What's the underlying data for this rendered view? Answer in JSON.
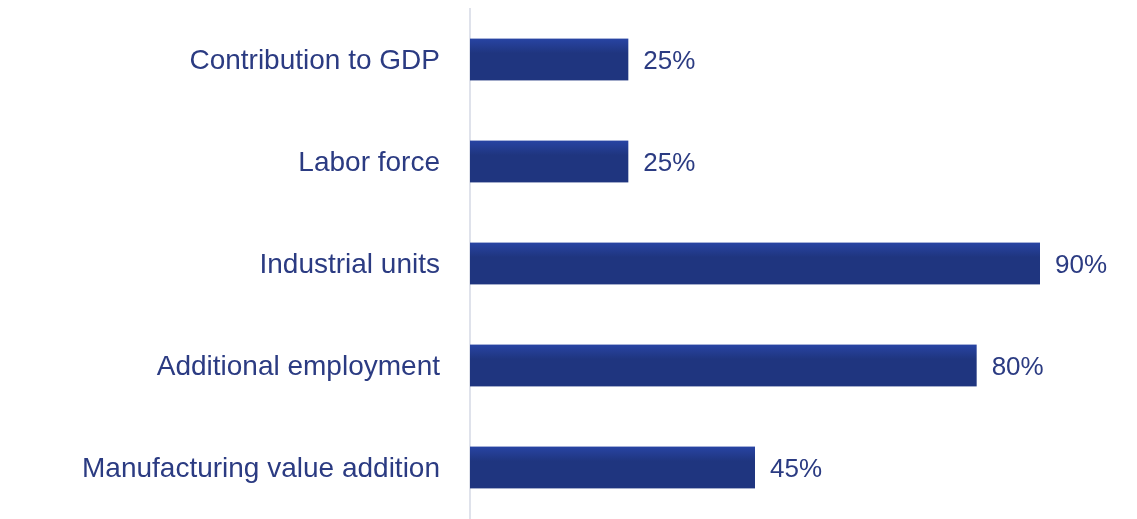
{
  "chart_data": {
    "type": "bar",
    "orientation": "horizontal",
    "categories": [
      "Contribution to GDP",
      "Labor force",
      "Industrial units",
      "Additional employment",
      "Manufacturing value addition"
    ],
    "values": [
      25,
      25,
      90,
      80,
      45
    ],
    "value_labels": [
      "25%",
      "25%",
      "90%",
      "80%",
      "45%"
    ],
    "color": "#1f357f"
  }
}
